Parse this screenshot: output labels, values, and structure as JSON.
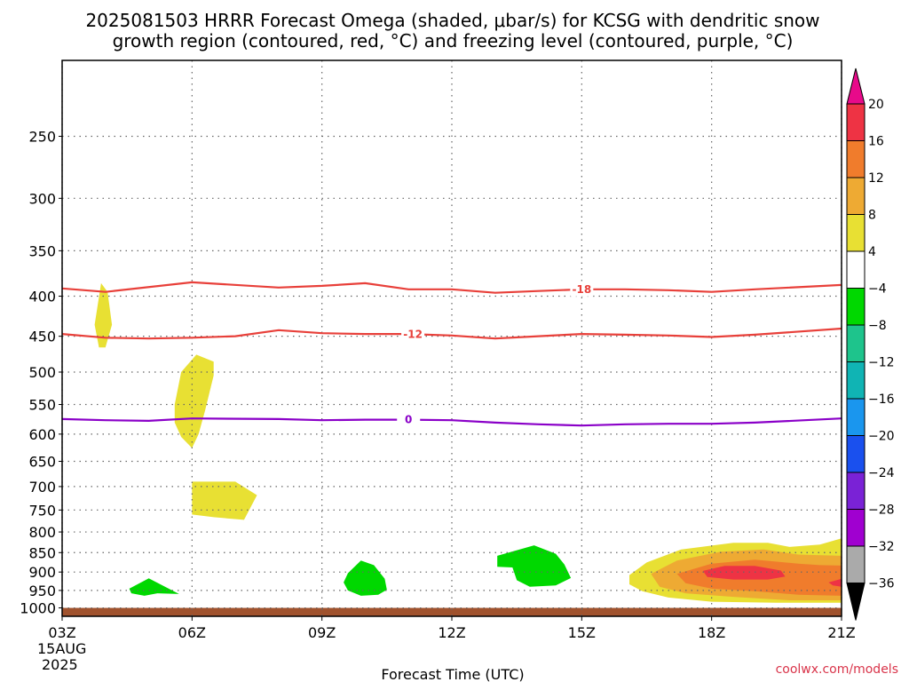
{
  "chart_data": {
    "type": "time-height cross section",
    "title_line1": "2025081503 HRRR Forecast Omega (shaded, μbar/s) for KCSG with dendritic snow",
    "title_line2": "growth region (contoured, red, °C) and freezing level (contoured, purple, °C)",
    "xlabel": "Forecast Time (UTC)",
    "x_ticks": [
      "03Z",
      "06Z",
      "09Z",
      "12Z",
      "15Z",
      "18Z",
      "21Z"
    ],
    "x_tick_hours": [
      3,
      6,
      9,
      12,
      15,
      18,
      21
    ],
    "x_date_day": "15AUG",
    "x_date_year": "2025",
    "xlim": [
      3,
      21
    ],
    "y_ticks": [
      250,
      300,
      350,
      400,
      450,
      500,
      550,
      600,
      650,
      700,
      750,
      800,
      850,
      900,
      950,
      1000
    ],
    "y_tick_labels": [
      "250",
      "300",
      "350",
      "400",
      "450",
      "500",
      "550",
      "600",
      "650",
      "700",
      "750",
      "800",
      "850",
      "900",
      "950",
      "1000"
    ],
    "ylim_top_hPa": 200,
    "ylim_bottom_hPa": 1025,
    "y_scale": "log-pressure",
    "ground_level_hPa": 1000,
    "grid": true,
    "colorbar": {
      "labels": [
        "20",
        "16",
        "12",
        "8",
        "4",
        "−4",
        "−8",
        "−12",
        "−16",
        "−20",
        "−24",
        "−28",
        "−32",
        "−36"
      ],
      "colors": [
        "#ee3344",
        "#f07c2c",
        "#eeaa33",
        "#e8e033",
        "#ffffff",
        "#00d800",
        "#1ec48c",
        "#10b4b4",
        "#1a96ee",
        "#1a50ee",
        "#7a22d6",
        "#a000d0",
        "#aaaaaa"
      ],
      "top_arrow_color": "#e80a8a",
      "bottom_arrow_color": "#000000"
    },
    "contours": [
      {
        "label": "-18",
        "color": "#e8403a",
        "label_at_hour": 15.0,
        "points": [
          [
            3,
            391
          ],
          [
            4,
            395
          ],
          [
            6,
            384
          ],
          [
            8,
            390
          ],
          [
            9,
            388
          ],
          [
            10,
            385
          ],
          [
            11,
            392
          ],
          [
            12,
            392
          ],
          [
            13,
            396
          ],
          [
            14,
            394
          ],
          [
            15,
            392
          ],
          [
            16,
            392
          ],
          [
            17,
            393
          ],
          [
            18,
            395
          ],
          [
            19,
            392
          ],
          [
            21,
            387
          ]
        ]
      },
      {
        "label": "-12",
        "color": "#e8403a",
        "label_at_hour": 11.1,
        "points": [
          [
            3,
            447
          ],
          [
            4,
            452
          ],
          [
            5,
            453
          ],
          [
            6,
            452
          ],
          [
            7,
            450
          ],
          [
            8,
            442
          ],
          [
            9,
            446
          ],
          [
            10,
            447
          ],
          [
            11,
            447
          ],
          [
            12,
            449
          ],
          [
            13,
            453
          ],
          [
            14,
            450
          ],
          [
            15,
            447
          ],
          [
            16,
            448
          ],
          [
            17,
            449
          ],
          [
            18,
            451
          ],
          [
            19,
            448
          ],
          [
            21,
            440
          ]
        ]
      },
      {
        "label": "0",
        "color": "#8a00c8",
        "label_at_hour": 11.0,
        "points": [
          [
            3,
            574
          ],
          [
            4,
            576
          ],
          [
            5,
            577
          ],
          [
            6,
            573
          ],
          [
            8,
            574
          ],
          [
            9,
            576
          ],
          [
            10,
            575
          ],
          [
            11,
            575
          ],
          [
            12,
            576
          ],
          [
            13,
            580
          ],
          [
            14,
            583
          ],
          [
            15,
            585
          ],
          [
            16,
            583
          ],
          [
            17,
            582
          ],
          [
            18,
            582
          ],
          [
            19,
            580
          ],
          [
            21,
            573
          ]
        ]
      }
    ],
    "omega_regions": [
      {
        "value_class": "4 to 8",
        "color": "#e8e033",
        "points": [
          [
            3.75,
            435
          ],
          [
            3.9,
            385
          ],
          [
            4.05,
            395
          ],
          [
            4.15,
            435
          ],
          [
            4.0,
            465
          ],
          [
            3.85,
            465
          ]
        ]
      },
      {
        "value_class": "4 to 8",
        "color": "#e8e033",
        "points": [
          [
            5.6,
            550
          ],
          [
            5.75,
            500
          ],
          [
            6.1,
            475
          ],
          [
            6.5,
            485
          ],
          [
            6.5,
            505
          ],
          [
            6.3,
            560
          ],
          [
            6.15,
            600
          ],
          [
            6.0,
            625
          ],
          [
            5.75,
            605
          ],
          [
            5.6,
            580
          ]
        ]
      },
      {
        "value_class": "4 to 8",
        "color": "#e8e033",
        "points": [
          [
            6.0,
            690
          ],
          [
            7.0,
            690
          ],
          [
            7.5,
            718
          ],
          [
            7.2,
            772
          ],
          [
            6.5,
            766
          ],
          [
            6.0,
            760
          ]
        ]
      },
      {
        "value_class": "-4 to -8",
        "color": "#00d800",
        "points": [
          [
            4.55,
            945
          ],
          [
            5.0,
            917
          ],
          [
            5.7,
            960
          ],
          [
            5.2,
            958
          ],
          [
            4.9,
            965
          ],
          [
            4.6,
            958
          ]
        ]
      },
      {
        "value_class": "-4 to -8",
        "color": "#00d800",
        "points": [
          [
            9.6,
            903
          ],
          [
            9.9,
            870
          ],
          [
            10.2,
            882
          ],
          [
            10.45,
            918
          ],
          [
            10.5,
            948
          ],
          [
            10.3,
            962
          ],
          [
            9.9,
            965
          ],
          [
            9.6,
            950
          ],
          [
            9.5,
            928
          ]
        ]
      },
      {
        "value_class": "-4 to -8",
        "color": "#00d800",
        "points": [
          [
            13.05,
            858
          ],
          [
            13.9,
            832
          ],
          [
            14.4,
            853
          ],
          [
            14.6,
            880
          ],
          [
            14.75,
            916
          ],
          [
            14.4,
            936
          ],
          [
            13.8,
            940
          ],
          [
            13.5,
            922
          ],
          [
            13.4,
            888
          ],
          [
            13.05,
            886
          ]
        ]
      },
      {
        "value_class": "4 to 8",
        "color": "#e8e033",
        "points": [
          [
            16.1,
            908
          ],
          [
            16.5,
            875
          ],
          [
            17.3,
            842
          ],
          [
            18.5,
            826
          ],
          [
            19.3,
            826
          ],
          [
            19.8,
            836
          ],
          [
            20.5,
            830
          ],
          [
            21,
            815
          ],
          [
            21,
            985
          ],
          [
            19.5,
            985
          ],
          [
            18.0,
            982
          ],
          [
            17.0,
            970
          ],
          [
            16.4,
            952
          ],
          [
            16.1,
            933
          ]
        ]
      },
      {
        "value_class": "8 to 12",
        "color": "#eeaa33",
        "points": [
          [
            16.6,
            905
          ],
          [
            17.2,
            870
          ],
          [
            18.2,
            848
          ],
          [
            19.2,
            842
          ],
          [
            20.0,
            855
          ],
          [
            21,
            858
          ],
          [
            21,
            978
          ],
          [
            19.8,
            978
          ],
          [
            18.5,
            968
          ],
          [
            17.4,
            958
          ],
          [
            16.8,
            940
          ]
        ]
      },
      {
        "value_class": "12 to 16",
        "color": "#f07c2c",
        "points": [
          [
            17.2,
            905
          ],
          [
            18.0,
            878
          ],
          [
            19.0,
            868
          ],
          [
            20.0,
            878
          ],
          [
            20.5,
            882
          ],
          [
            21,
            883
          ],
          [
            21,
            965
          ],
          [
            20.0,
            962
          ],
          [
            19.0,
            952
          ],
          [
            18.0,
            945
          ],
          [
            17.4,
            930
          ]
        ]
      },
      {
        "value_class": "16 to 20",
        "color": "#ee3344",
        "points": [
          [
            17.8,
            897
          ],
          [
            18.3,
            884
          ],
          [
            19.0,
            884
          ],
          [
            19.6,
            896
          ],
          [
            19.7,
            912
          ],
          [
            19.3,
            920
          ],
          [
            18.5,
            920
          ],
          [
            17.9,
            913
          ]
        ]
      },
      {
        "value_class": "16 to 20",
        "color": "#ee3344",
        "points": [
          [
            20.7,
            928
          ],
          [
            21,
            918
          ],
          [
            21,
            940
          ],
          [
            20.8,
            936
          ]
        ]
      }
    ]
  },
  "credit": "coolwx.com/models"
}
